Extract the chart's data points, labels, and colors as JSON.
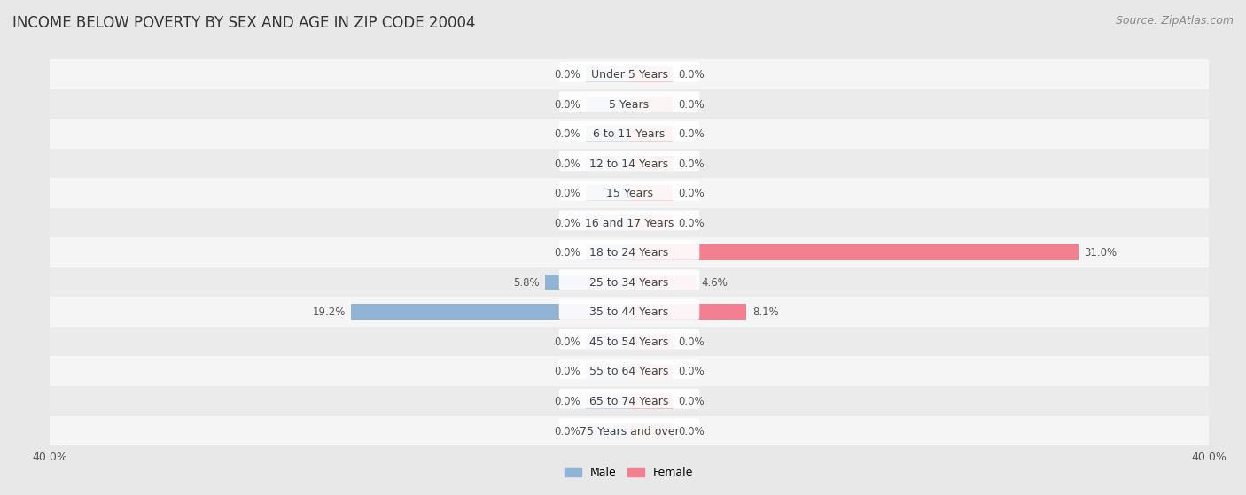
{
  "title": "INCOME BELOW POVERTY BY SEX AND AGE IN ZIP CODE 20004",
  "source": "Source: ZipAtlas.com",
  "categories": [
    "Under 5 Years",
    "5 Years",
    "6 to 11 Years",
    "12 to 14 Years",
    "15 Years",
    "16 and 17 Years",
    "18 to 24 Years",
    "25 to 34 Years",
    "35 to 44 Years",
    "45 to 54 Years",
    "55 to 64 Years",
    "65 to 74 Years",
    "75 Years and over"
  ],
  "male_values": [
    0.0,
    0.0,
    0.0,
    0.0,
    0.0,
    0.0,
    0.0,
    5.8,
    19.2,
    0.0,
    0.0,
    0.0,
    0.0
  ],
  "female_values": [
    0.0,
    0.0,
    0.0,
    0.0,
    0.0,
    0.0,
    31.0,
    4.6,
    8.1,
    0.0,
    0.0,
    0.0,
    0.0
  ],
  "male_color": "#92b4d4",
  "female_color": "#f28090",
  "male_label": "Male",
  "female_label": "Female",
  "xlim": 40.0,
  "min_bar": 3.0,
  "bar_height": 0.52,
  "bg_color": "#e8e8e8",
  "row_bg_even": "#f5f5f5",
  "row_bg_odd": "#ebebeb",
  "title_fontsize": 12,
  "source_fontsize": 9,
  "label_fontsize": 9,
  "axis_label_fontsize": 9,
  "value_fontsize": 8.5
}
